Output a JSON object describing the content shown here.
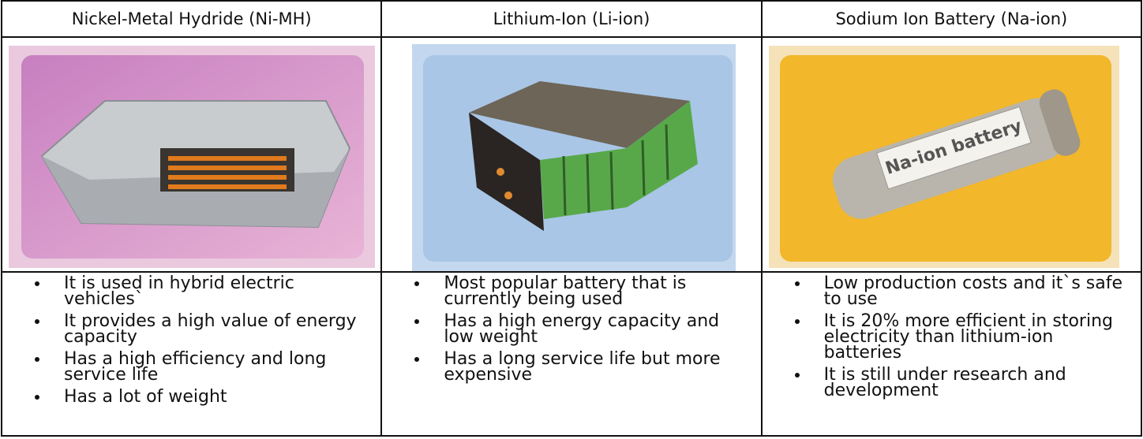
{
  "table": {
    "headers": [
      "Nickel-Metal Hydride (Ni-MH)",
      "Lithium-Ion (Li-ion)",
      "Sodium Ion Battery (Na-ion)"
    ],
    "image_labels": {
      "2": "Na-ion battery"
    },
    "bullets": [
      [
        "It is used in hybrid electric vehicles`",
        "It provides a high value of energy capacity",
        "Has a high efficiency and long service life",
        "Has a lot of weight"
      ],
      [
        "Most popular battery that is currently being used",
        "Has a high energy capacity and low weight",
        "Has a long service life but more expensive"
      ],
      [
        "Low production costs and it`s safe to use",
        "It is 20% more efficient in storing electricity than lithium-ion batteries",
        "It is still under research and development"
      ]
    ]
  }
}
